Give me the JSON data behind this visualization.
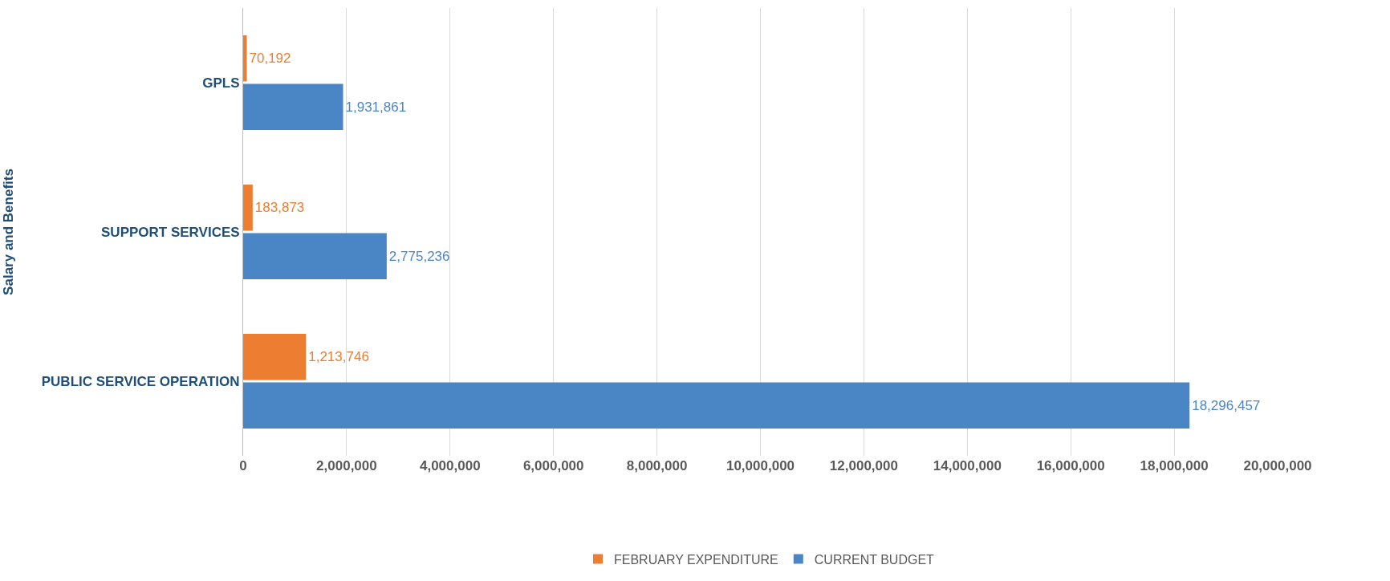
{
  "chart_data": {
    "type": "bar",
    "orientation": "horizontal",
    "ylabel": "Salary and Benefits",
    "categories": [
      "GPLS",
      "SUPPORT SERVICES",
      "PUBLIC SERVICE OPERATION"
    ],
    "series": [
      {
        "name": "FEBRUARY EXPENDITURE",
        "color": "#ed7d31",
        "values": [
          70192,
          183873,
          1213746
        ],
        "value_labels": [
          "70,192",
          "183,873",
          "1,213,746"
        ]
      },
      {
        "name": "CURRENT BUDGET",
        "color": "#4a86c5",
        "values": [
          1931861,
          2775236,
          18296457
        ],
        "value_labels": [
          "1,931,861",
          "2,775,236",
          "18,296,457"
        ]
      }
    ],
    "xlim": [
      0,
      20000000
    ],
    "xticks": [
      0,
      {
        "value": 2000000,
        "label": "2,000,000"
      },
      {
        "value": 4000000,
        "label": "4,000,000"
      },
      {
        "value": 6000000,
        "label": "6,000,000"
      },
      {
        "value": 8000000,
        "label": "8,000,000"
      },
      {
        "value": 10000000,
        "label": "10,000,000"
      },
      {
        "value": 12000000,
        "label": "12,000,000"
      },
      {
        "value": 14000000,
        "label": "14,000,000"
      },
      {
        "value": 16000000,
        "label": "16,000,000"
      },
      {
        "value": 18000000,
        "label": "18,000,000"
      },
      {
        "value": 20000000,
        "label": "20,000,000"
      }
    ],
    "grid": "x",
    "legend": "bottom"
  }
}
